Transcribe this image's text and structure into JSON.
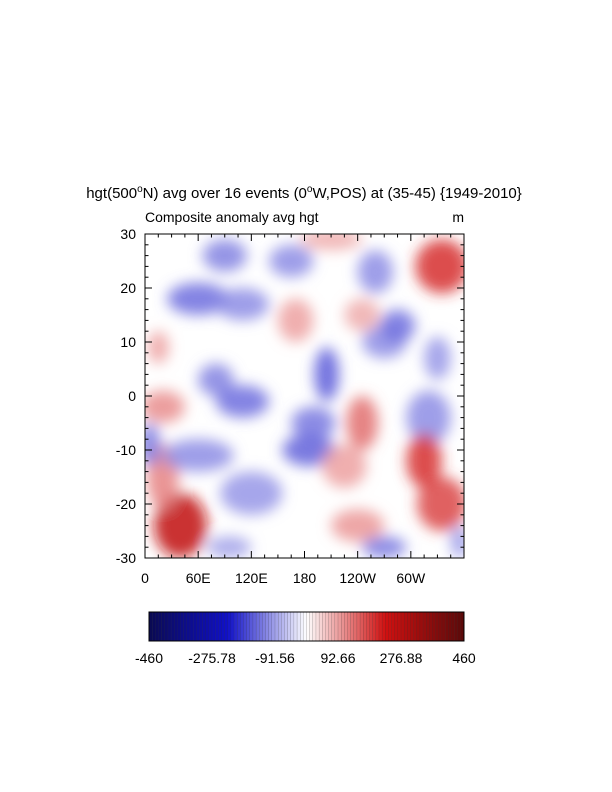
{
  "chart_data": {
    "type": "heatmap",
    "title": {
      "prefix": "hgt(500",
      "sup": "o",
      "mid1": "N) avg over 16 events (0",
      "sup2": "o",
      "mid2": "W,POS) at (35-45) {1949-2010}"
    },
    "subtitle_left": "Composite anomaly avg hgt",
    "subtitle_right": "m",
    "x_ticks": [
      {
        "label": "0",
        "lon": 0
      },
      {
        "label": "60E",
        "lon": 60
      },
      {
        "label": "120E",
        "lon": 120
      },
      {
        "label": "180",
        "lon": 180
      },
      {
        "label": "120W",
        "lon": 240
      },
      {
        "label": "60W",
        "lon": 300
      }
    ],
    "xlim": [
      0,
      360
    ],
    "y_ticks": [
      30,
      20,
      10,
      0,
      -10,
      -20,
      -30
    ],
    "ylim": [
      -30,
      30
    ],
    "colorbar": {
      "labels": [
        "-460",
        "-275.78",
        "-91.56",
        "92.66",
        "276.88",
        "460"
      ],
      "range": [
        -460,
        460
      ],
      "colors": [
        "#0a0a52",
        "#1010c8",
        "#ffffff",
        "#d01010",
        "#5a0a0a"
      ]
    },
    "anomaly_blobs": [
      {
        "lon": 40,
        "lat": -24,
        "rlon": 30,
        "rlat": 6,
        "v": 260
      },
      {
        "lon": 20,
        "lat": -15,
        "rlon": 18,
        "rlat": 6,
        "v": 120
      },
      {
        "lon": 20,
        "lat": -2,
        "rlon": 25,
        "rlat": 3,
        "v": 110
      },
      {
        "lon": 15,
        "lat": 9,
        "rlon": 12,
        "rlat": 3,
        "v": 90
      },
      {
        "lon": 5,
        "lat": -9,
        "rlon": 12,
        "rlat": 4,
        "v": -130
      },
      {
        "lon": 60,
        "lat": -11,
        "rlon": 40,
        "rlat": 3,
        "v": -110
      },
      {
        "lon": 90,
        "lat": 26,
        "rlon": 25,
        "rlat": 3,
        "v": -120
      },
      {
        "lon": 60,
        "lat": 18,
        "rlon": 35,
        "rlat": 3,
        "v": -140
      },
      {
        "lon": 110,
        "lat": 17,
        "rlon": 30,
        "rlat": 3,
        "v": -110
      },
      {
        "lon": 80,
        "lat": 3,
        "rlon": 20,
        "rlat": 3,
        "v": -120
      },
      {
        "lon": 110,
        "lat": -1,
        "rlon": 30,
        "rlat": 3,
        "v": -140
      },
      {
        "lon": 120,
        "lat": -18,
        "rlon": 35,
        "rlat": 4,
        "v": -100
      },
      {
        "lon": 95,
        "lat": -28,
        "rlon": 25,
        "rlat": 2,
        "v": -90
      },
      {
        "lon": 170,
        "lat": 14,
        "rlon": 20,
        "rlat": 4,
        "v": 90
      },
      {
        "lon": 210,
        "lat": 29,
        "rlon": 35,
        "rlat": 2,
        "v": 80
      },
      {
        "lon": 190,
        "lat": -5,
        "rlon": 25,
        "rlat": 3,
        "v": -130
      },
      {
        "lon": 165,
        "lat": 25,
        "rlon": 25,
        "rlat": 3,
        "v": -110
      },
      {
        "lon": 205,
        "lat": 4,
        "rlon": 14,
        "rlat": 5,
        "v": -160
      },
      {
        "lon": 185,
        "lat": -10,
        "rlon": 30,
        "rlat": 3,
        "v": -150
      },
      {
        "lon": 225,
        "lat": -13,
        "rlon": 25,
        "rlat": 4,
        "v": 90
      },
      {
        "lon": 240,
        "lat": -24,
        "rlon": 30,
        "rlat": 3,
        "v": 100
      },
      {
        "lon": 245,
        "lat": 15,
        "rlon": 20,
        "rlat": 3,
        "v": 80
      },
      {
        "lon": 260,
        "lat": 23,
        "rlon": 20,
        "rlat": 4,
        "v": -110
      },
      {
        "lon": 270,
        "lat": 10,
        "rlon": 25,
        "rlat": 3,
        "v": -110
      },
      {
        "lon": 245,
        "lat": -5,
        "rlon": 18,
        "rlat": 5,
        "v": 140
      },
      {
        "lon": 285,
        "lat": 13,
        "rlon": 20,
        "rlat": 3,
        "v": -140
      },
      {
        "lon": 270,
        "lat": -28,
        "rlon": 25,
        "rlat": 2,
        "v": -130
      },
      {
        "lon": 320,
        "lat": -4,
        "rlon": 25,
        "rlat": 5,
        "v": -110
      },
      {
        "lon": 330,
        "lat": 7,
        "rlon": 15,
        "rlat": 4,
        "v": -100
      },
      {
        "lon": 335,
        "lat": 24,
        "rlon": 30,
        "rlat": 5,
        "v": 200
      },
      {
        "lon": 315,
        "lat": -12,
        "rlon": 20,
        "rlat": 5,
        "v": 200
      },
      {
        "lon": 335,
        "lat": -20,
        "rlon": 28,
        "rlat": 5,
        "v": 180
      },
      {
        "lon": 355,
        "lat": -27,
        "rlon": 10,
        "rlat": 3,
        "v": -100
      }
    ]
  }
}
